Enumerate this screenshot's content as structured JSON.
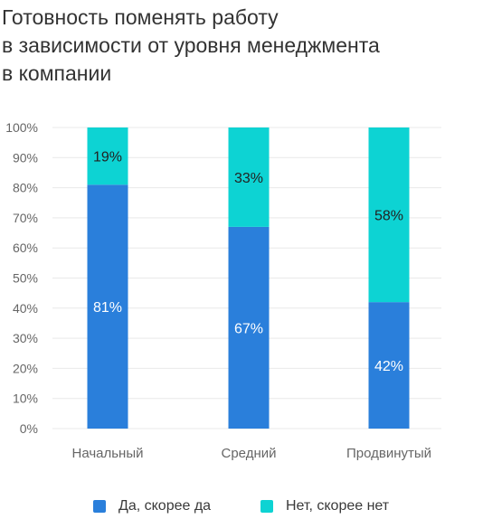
{
  "title_lines": [
    "Готовность поменять работу",
    "в зависимости от уровня менеджмента",
    "в компании"
  ],
  "colors": {
    "yes": "#2A7FDB",
    "no": "#0DD3D3",
    "grid": "#e9e9e9",
    "axis_text": "#666666"
  },
  "chart_data": {
    "type": "bar",
    "stacked": true,
    "title": "Готовность поменять работу в зависимости от уровня менеджмента в компании",
    "categories": [
      "Начальный",
      "Средний",
      "Продвинутый"
    ],
    "series": [
      {
        "name": "Да, скорее да",
        "values": [
          81,
          67,
          42
        ],
        "labels": [
          "81%",
          "67%",
          "42%"
        ]
      },
      {
        "name": "Нет, скорее нет",
        "values": [
          19,
          33,
          58
        ],
        "labels": [
          "19%",
          "33%",
          "58%"
        ]
      }
    ],
    "yticks": [
      "0%",
      "10%",
      "20%",
      "30%",
      "40%",
      "50%",
      "60%",
      "70%",
      "80%",
      "90%",
      "100%"
    ],
    "ylim": [
      0,
      100
    ],
    "grid": true,
    "legend": "bottom"
  }
}
